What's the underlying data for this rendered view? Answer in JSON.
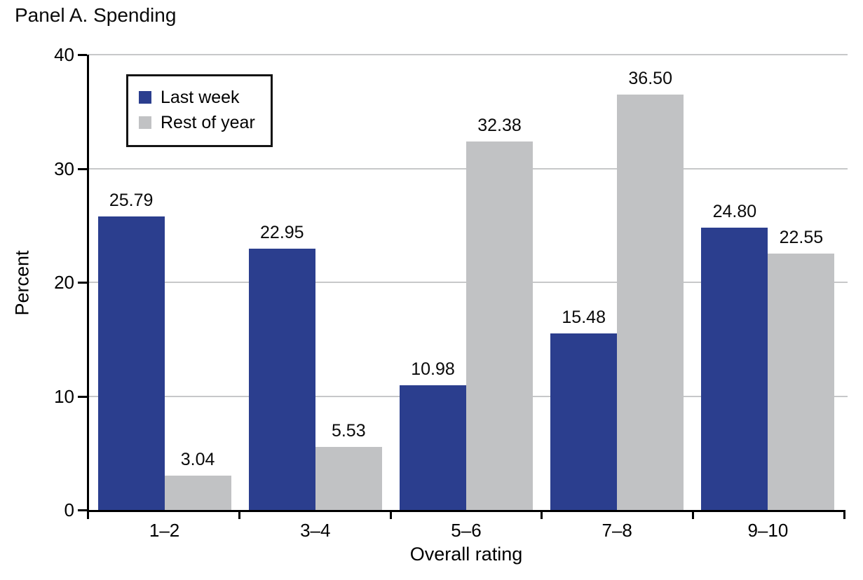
{
  "chart_data": {
    "type": "bar",
    "title": "Panel A. Spending",
    "xlabel": "Overall rating",
    "ylabel": "Percent",
    "categories": [
      "1–2",
      "3–4",
      "5–6",
      "7–8",
      "9–10"
    ],
    "series": [
      {
        "name": "Last week",
        "color": "#2b3e8e",
        "values": [
          25.79,
          22.95,
          10.98,
          15.48,
          24.8
        ]
      },
      {
        "name": "Rest of year",
        "color": "#c1c2c4",
        "values": [
          3.04,
          5.53,
          32.38,
          36.5,
          22.55
        ]
      }
    ],
    "value_labels": [
      [
        "25.79",
        "22.95",
        "10.98",
        "15.48",
        "24.80"
      ],
      [
        "3.04",
        "5.53",
        "32.38",
        "36.50",
        "22.55"
      ]
    ],
    "ylim": [
      0,
      40
    ],
    "yticks": [
      0,
      10,
      20,
      30,
      40
    ],
    "grid": true,
    "legend_position": "upper-left",
    "colors": {
      "gridline": "#c7c8c9",
      "axis": "#000000",
      "text": "#0a0a0a",
      "background": "#ffffff"
    }
  }
}
